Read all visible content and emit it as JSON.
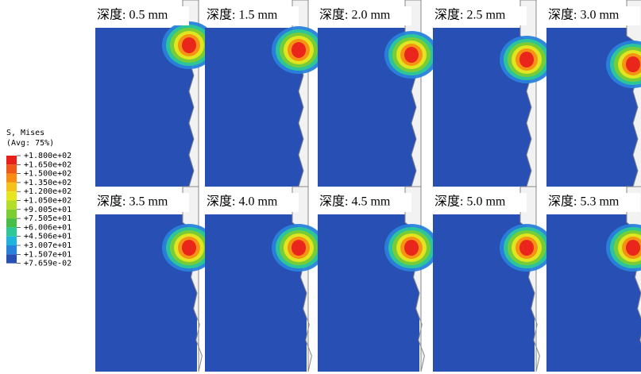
{
  "legend": {
    "title": "S, Mises",
    "subtitle": "(Avg: 75%)",
    "labels": [
      "+1.800e+02",
      "+1.650e+02",
      "+1.500e+02",
      "+1.350e+02",
      "+1.200e+02",
      "+1.050e+02",
      "+9.005e+01",
      "+7.505e+01",
      "+6.006e+01",
      "+4.506e+01",
      "+3.007e+01",
      "+1.507e+01",
      "+7.659e-02"
    ],
    "colors": [
      "#e8201c",
      "#f05a18",
      "#f78d14",
      "#f5c21c",
      "#e6e61e",
      "#b4dc28",
      "#7ccd32",
      "#46be46",
      "#2dc896",
      "#1eb4dc",
      "#2882dc",
      "#2850b4"
    ]
  },
  "panels": [
    {
      "label": "深度: 0.5 mm"
    },
    {
      "label": "深度: 1.5 mm"
    },
    {
      "label": "深度: 2.0 mm"
    },
    {
      "label": "深度: 2.5 mm"
    },
    {
      "label": "深度: 3.0 mm"
    },
    {
      "label": "深度: 3.5 mm"
    },
    {
      "label": "深度: 4.0 mm"
    },
    {
      "label": "深度: 4.5 mm"
    },
    {
      "label": "深度: 5.0 mm"
    },
    {
      "label": "深度: 5.3 mm"
    }
  ]
}
